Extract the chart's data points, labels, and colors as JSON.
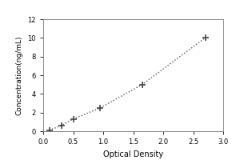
{
  "x_data": [
    0.1,
    0.3,
    0.5,
    0.95,
    1.65,
    2.7
  ],
  "y_data": [
    0.1,
    0.6,
    1.3,
    2.5,
    5.0,
    10.0
  ],
  "xlabel": "Optical Density",
  "ylabel": "Concentration(ng/mL)",
  "xlim": [
    0,
    3
  ],
  "ylim": [
    0,
    12
  ],
  "xticks": [
    0,
    0.5,
    1,
    1.5,
    2,
    2.5,
    3
  ],
  "yticks": [
    0,
    2,
    4,
    6,
    8,
    10,
    12
  ],
  "marker": "+",
  "marker_color": "#444444",
  "line_style": "dotted",
  "line_color": "#555555",
  "marker_size": 6,
  "marker_edge_width": 1.2,
  "background_color": "#ffffff",
  "spine_color": "#888888",
  "title": "",
  "xlabel_fontsize": 7,
  "ylabel_fontsize": 6.5,
  "tick_fontsize": 6,
  "linewidth": 1.0
}
